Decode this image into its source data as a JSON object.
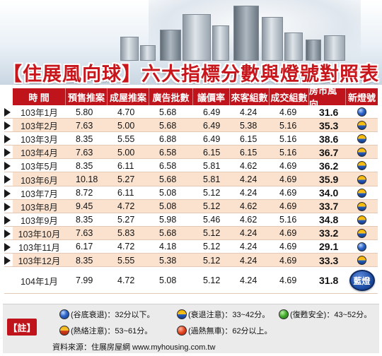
{
  "title": "【住展風向球】六大指標分數與燈號對照表",
  "headers": [
    "時 間",
    "預售推案",
    "成屋推案",
    "廣告批數",
    "議價率",
    "來客組數",
    "成交組數",
    "房市風向",
    "新燈號"
  ],
  "rows": [
    {
      "time": "103年1月",
      "v": [
        "5.80",
        "4.70",
        "5.68",
        "6.49",
        "4.24",
        "4.69"
      ],
      "trend": "31.6",
      "signal": "blue"
    },
    {
      "time": "103年2月",
      "v": [
        "7.63",
        "5.00",
        "5.68",
        "6.49",
        "5.38",
        "5.16"
      ],
      "trend": "35.3",
      "signal": "yellow-blue"
    },
    {
      "time": "103年3月",
      "v": [
        "8.35",
        "5.55",
        "6.88",
        "6.49",
        "6.15",
        "5.16"
      ],
      "trend": "38.6",
      "signal": "yellow-blue"
    },
    {
      "time": "103年4月",
      "v": [
        "7.63",
        "5.00",
        "6.58",
        "6.15",
        "6.15",
        "5.16"
      ],
      "trend": "36.7",
      "signal": "yellow-blue"
    },
    {
      "time": "103年5月",
      "v": [
        "8.35",
        "6.11",
        "6.58",
        "5.81",
        "4.62",
        "4.69"
      ],
      "trend": "36.2",
      "signal": "yellow-blue"
    },
    {
      "time": "103年6月",
      "v": [
        "10.18",
        "5.27",
        "5.68",
        "5.81",
        "4.24",
        "4.69"
      ],
      "trend": "35.9",
      "signal": "yellow-blue"
    },
    {
      "time": "103年7月",
      "v": [
        "8.72",
        "6.11",
        "5.08",
        "5.12",
        "4.24",
        "4.69"
      ],
      "trend": "34.0",
      "signal": "yellow-blue"
    },
    {
      "time": "103年8月",
      "v": [
        "9.45",
        "4.72",
        "5.08",
        "5.12",
        "4.62",
        "4.69"
      ],
      "trend": "33.7",
      "signal": "yellow-blue"
    },
    {
      "time": "103年9月",
      "v": [
        "8.35",
        "5.27",
        "5.98",
        "5.46",
        "4.62",
        "5.16"
      ],
      "trend": "34.8",
      "signal": "yellow-blue"
    },
    {
      "time": "103年10月",
      "v": [
        "7.63",
        "5.83",
        "5.68",
        "5.12",
        "4.24",
        "4.69"
      ],
      "trend": "33.2",
      "signal": "yellow-blue"
    },
    {
      "time": "103年11月",
      "v": [
        "6.17",
        "4.72",
        "4.18",
        "5.12",
        "4.24",
        "4.69"
      ],
      "trend": "29.1",
      "signal": "blue"
    },
    {
      "time": "103年12月",
      "v": [
        "8.35",
        "5.55",
        "5.38",
        "5.12",
        "4.24",
        "4.69"
      ],
      "trend": "33.3",
      "signal": "yellow-blue"
    },
    {
      "time": "104年1月",
      "v": [
        "7.99",
        "4.72",
        "5.08",
        "5.12",
        "4.24",
        "4.69"
      ],
      "trend": "31.8",
      "signal": "藍燈"
    }
  ],
  "watermark": "www.myhousing.com.tw",
  "legend": {
    "note": "【註】",
    "items": [
      {
        "label": "(谷底衰退)：32分以下。",
        "color": "blue"
      },
      {
        "label": "(衰退注意)：33~42分。",
        "color": "yellow-blue"
      },
      {
        "label": "(復甦安全)：43~52分。",
        "color": "green"
      },
      {
        "label": "(熱絡注意)：53~61分。",
        "color": "yellow-red"
      },
      {
        "label": "(過熱無車)：62分以上。",
        "color": "red"
      }
    ],
    "source": "資料來源：住展房屋網 www.myhousing.com.tw"
  },
  "colors": {
    "header_bg": "#c0141c",
    "row_alt": "#fbe2cf",
    "title": "#c8161d"
  }
}
